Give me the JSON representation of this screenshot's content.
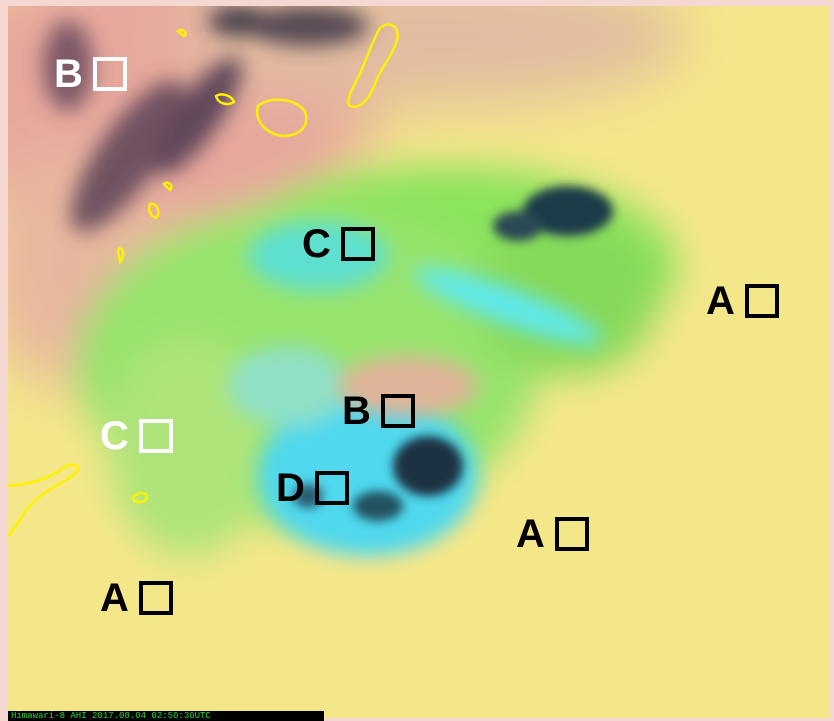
{
  "image": {
    "description_colors": {
      "warm_yellow": "#f6ec8a",
      "green": "#8ee25a",
      "cyan": "#4de0e8",
      "pink": "#e4a7a0",
      "dark": "#2c2a3d",
      "coastline": "#fff200"
    },
    "caption": "Himawari-8  AHI  2017.08.04  02:50:30UTC"
  },
  "markers": [
    {
      "id": "b-top-left",
      "letter": "B",
      "color": "white"
    },
    {
      "id": "c-top",
      "letter": "C",
      "color": "black"
    },
    {
      "id": "a-right",
      "letter": "A",
      "color": "black"
    },
    {
      "id": "b-center",
      "letter": "B",
      "color": "black"
    },
    {
      "id": "c-left",
      "letter": "C",
      "color": "white"
    },
    {
      "id": "d-center",
      "letter": "D",
      "color": "black"
    },
    {
      "id": "a-lower-right",
      "letter": "A",
      "color": "black"
    },
    {
      "id": "a-lower-left",
      "letter": "A",
      "color": "black"
    }
  ]
}
